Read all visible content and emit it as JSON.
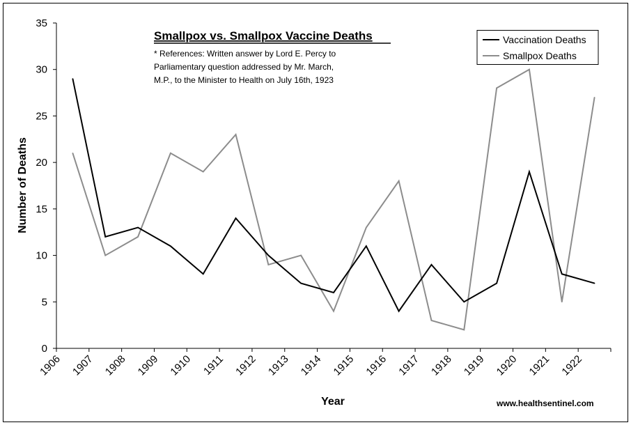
{
  "chart_data": {
    "type": "line",
    "title": "Smallpox vs. Smallpox Vaccine Deaths",
    "note_lines": [
      "* References: Written answer by Lord E. Percy to",
      "Parliamentary question addressed by Mr. March,",
      "M.P., to the Minister to Health on July 16th, 1923"
    ],
    "xlabel": "Year",
    "ylabel": "Number of Deaths",
    "categories": [
      "1906",
      "1907",
      "1908",
      "1909",
      "1910",
      "1911",
      "1912",
      "1913",
      "1914",
      "1915",
      "1916",
      "1917",
      "1918",
      "1919",
      "1920",
      "1921",
      "1922"
    ],
    "ylim": [
      0,
      35
    ],
    "yticks": [
      0,
      5,
      10,
      15,
      20,
      25,
      30,
      35
    ],
    "grid": false,
    "legend_position": "top-right",
    "series": [
      {
        "name": "Vaccination Deaths",
        "color": "#000000",
        "values": [
          29,
          12,
          13,
          11,
          8,
          14,
          10,
          7,
          6,
          11,
          4,
          9,
          5,
          7,
          19,
          8,
          7
        ]
      },
      {
        "name": "Smallpox Deaths",
        "color": "#8c8c8c",
        "values": [
          21,
          10,
          12,
          21,
          19,
          23,
          9,
          10,
          4,
          13,
          18,
          3,
          2,
          28,
          30,
          5,
          27
        ]
      }
    ],
    "credit": "www.healthsentinel.com"
  }
}
